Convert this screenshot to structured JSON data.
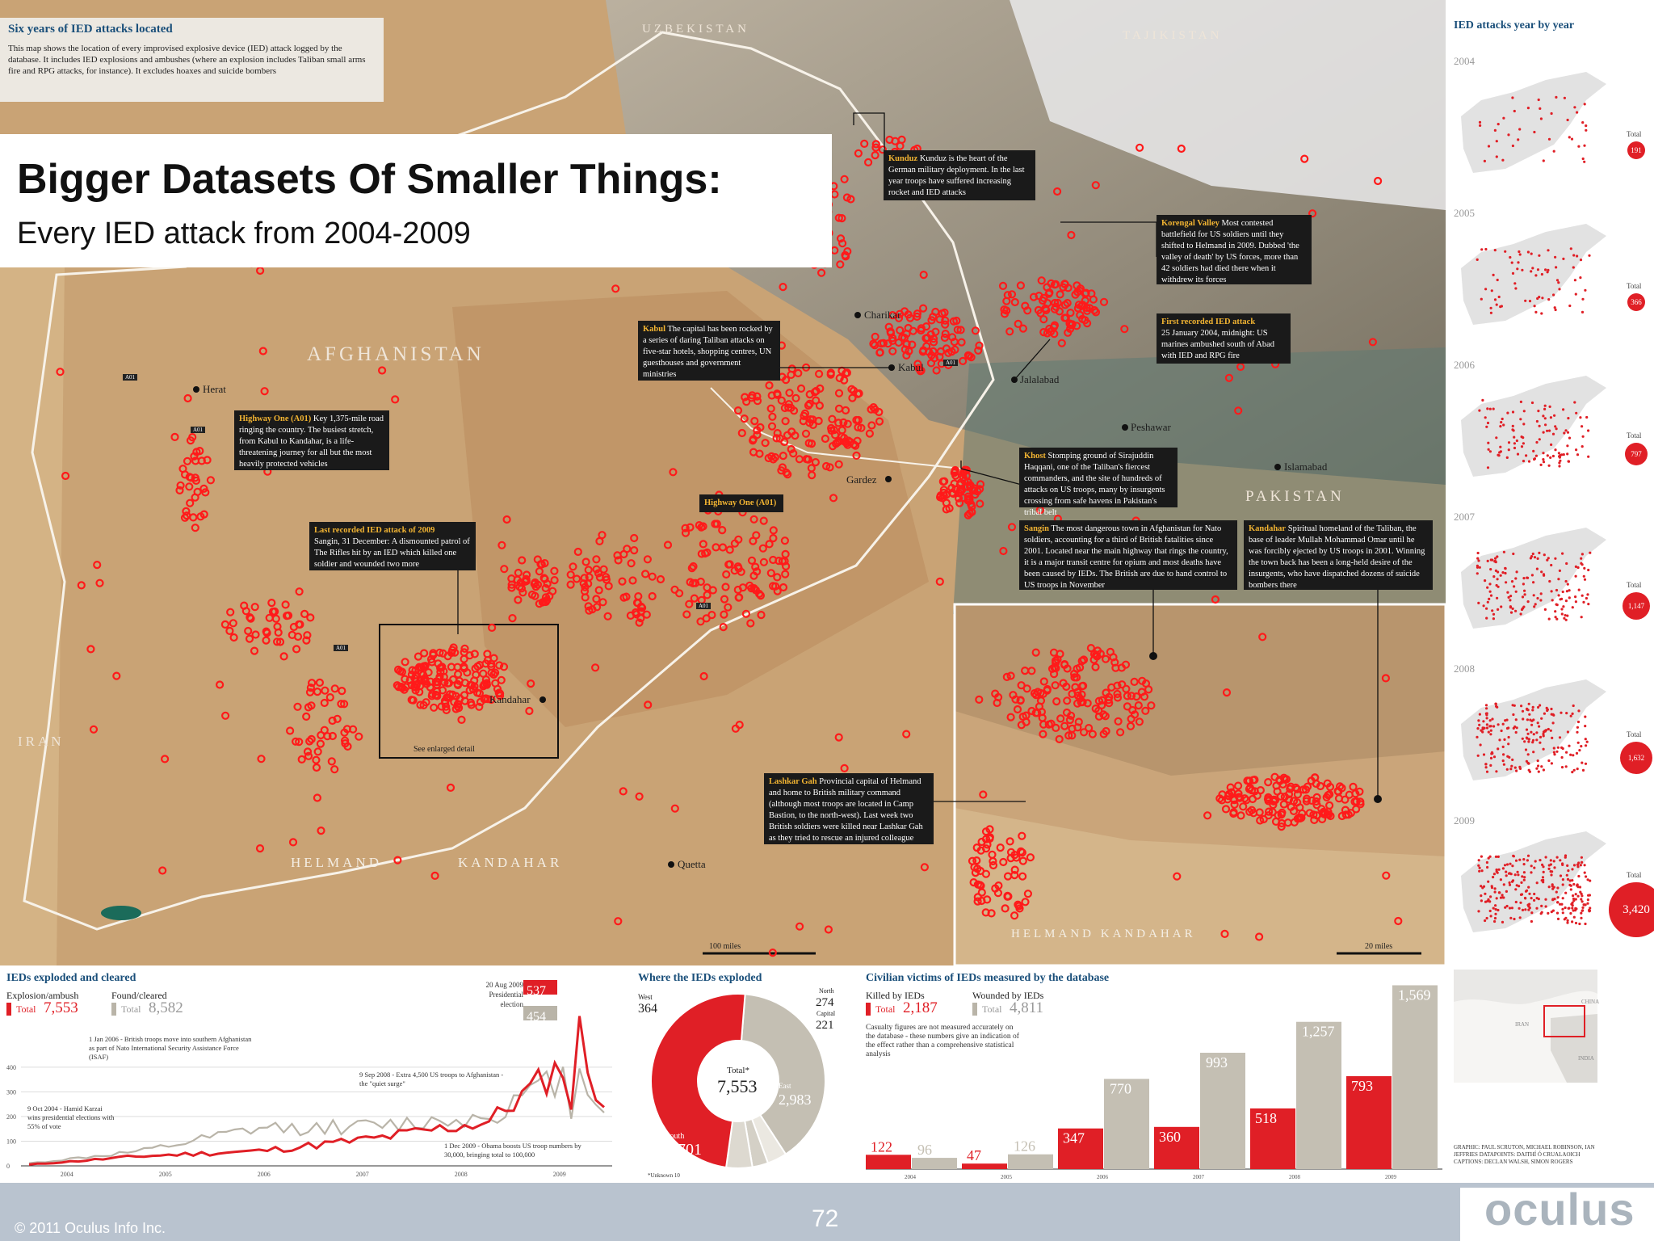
{
  "slide": {
    "title": "Bigger Datasets Of Smaller Things:",
    "subtitle": "Every IED attack from 2004-2009",
    "copyright": "© 2011 Oculus Info Inc.",
    "page_number": "72",
    "logo_text": "oculus"
  },
  "map": {
    "intro_title": "Six years of IED attacks located",
    "intro_text": "This map shows the location of every improvised explosive device (IED) attack logged by the database. It includes IED explosions and ambushes (where an explosion includes Taliban small arms fire and RPG attacks, for instance). It excludes hoaxes and suicide bombers",
    "countries": [
      "UZBEKISTAN",
      "TAJIKISTAN",
      "AFGHANISTAN",
      "PAKISTAN",
      "IRAN"
    ],
    "regions": [
      "HELMAND",
      "KANDAHAR"
    ],
    "places": [
      "Herat",
      "Kabul",
      "Jalalabad",
      "Peshawar",
      "Islamabad",
      "Gardez",
      "Kandahar",
      "Quetta",
      "Charikar"
    ],
    "road_labels": [
      "A01",
      "A01",
      "A01",
      "A01",
      "A01"
    ],
    "enlarged_label": "See enlarged detail",
    "scale_main": "100 miles",
    "scale_inset": "20 miles",
    "inset_regions": "HELMAND KANDAHAR",
    "callouts": {
      "kunduz": {
        "head": "Kunduz",
        "text": "Kunduz is the heart of the German military deployment. In the last year troops have suffered increasing rocket and IED attacks"
      },
      "korengal": {
        "head": "Korengal Valley",
        "text": "Most contested battlefield for US soldiers until they shifted to Helmand in 2009. Dubbed 'the valley of death' by US forces, more than 42 soldiers had died there when it withdrew its forces"
      },
      "first": {
        "head": "First recorded IED attack",
        "text": "25 January 2004, midnight: US marines ambushed south of Abad with IED and RPG fire"
      },
      "kabul": {
        "head": "Kabul",
        "text": "The capital has been rocked by a series of daring Taliban attacks on five-star hotels, shopping centres, UN guesthouses and government ministries"
      },
      "highway": {
        "head": "Highway One (A01)",
        "text": "Key 1,375-mile road ringing the country. The busiest stretch, from Kabul to Kandahar, is a life-threatening journey for all but the most heavily protected vehicles"
      },
      "highway_label": {
        "head": "Highway One (A01)",
        "text": ""
      },
      "khost": {
        "head": "Khost",
        "text": "Stomping ground of Sirajuddin Haqqani, one of the Taliban's fiercest commanders, and the site of hundreds of attacks on US troops, many by insurgents crossing from safe havens in Pakistan's tribal belt"
      },
      "last": {
        "head": "Last recorded IED attack of 2009",
        "text": "Sangin, 31 December: A dismounted patrol of The Rifles hit by an IED which killed one soldier and wounded two more"
      },
      "sangin": {
        "head": "Sangin",
        "text": "The most dangerous town in Afghanistan for Nato soldiers, accounting for a third of British fatalities since 2001. Located near the main highway that rings the country, it is a major transit centre for opium and most deaths have been caused by IEDs. The British are due to hand control to US troops in November"
      },
      "kandahar": {
        "head": "Kandahar",
        "text": "Spiritual homeland of the Taliban, the base of leader Mullah Mohammad Omar until he was forcibly ejected by US troops in 2001. Winning the town back has been a long-held desire of the insurgents, who have dispatched dozens of suicide bombers there"
      },
      "lashkar": {
        "head": "Lashkar Gah",
        "text": "Provincial capital of Helmand and home to British military command (although most troops are located in Camp Bastion, to the north-west). Last week two British soldiers were killed near Lashkar Gah as they tried to rescue an injured colleague"
      }
    }
  },
  "year_panel": {
    "title": "IED attacks year by year",
    "total_label": "Total",
    "years": [
      {
        "year": "2004",
        "total": "191"
      },
      {
        "year": "2005",
        "total": "366"
      },
      {
        "year": "2006",
        "total": "797"
      },
      {
        "year": "2007",
        "total": "1,147"
      },
      {
        "year": "2008",
        "total": "1,632"
      },
      {
        "year": "2009",
        "total": "3,420"
      }
    ]
  },
  "exploded_panel": {
    "title": "IEDs exploded and cleared",
    "legend_exploded": "Explosion/ambush",
    "legend_cleared": "Found/cleared",
    "total_exploded_label": "Total",
    "total_exploded": "7,553",
    "total_cleared_label": "Total",
    "total_cleared": "8,582",
    "y_ticks": [
      "400",
      "300",
      "200",
      "100",
      "0"
    ],
    "x_ticks": [
      "2004",
      "2005",
      "2006",
      "2007",
      "2008",
      "2009"
    ],
    "peak_exploded": "537",
    "peak_cleared": "454",
    "annotations": {
      "a1": "20 Aug 2009 Presidential election",
      "a2": "1 Jan 2006 - British troops move into southern Afghanistan as part of Nato International Security Assistance Force (ISAF)",
      "a3": "9 Sep 2008 - Extra 4,500 US troops to Afghanistan - the \"quiet surge\"",
      "a4": "9 Oct 2004 - Hamid Karzai wins presidential elections with 55% of vote",
      "a5": "1 Dec 2009 - Obama boosts US troop numbers by 30,000, bringing total to 100,000"
    }
  },
  "donut_panel": {
    "title": "Where the IEDs exploded",
    "center_label": "Total*",
    "center_value": "7,553",
    "footnote": "*Unknown 10",
    "segments": [
      {
        "name": "South",
        "value": "3,701",
        "color": "#e01f26"
      },
      {
        "name": "East",
        "value": "2,983",
        "color": "#c4bfb3"
      },
      {
        "name": "West",
        "value": "364",
        "color": "#ddd9d0"
      },
      {
        "name": "North",
        "value": "274",
        "color": "#ebe8e1"
      },
      {
        "name": "Capital",
        "value": "221",
        "color": "#d4d0c6"
      }
    ]
  },
  "victims_panel": {
    "title": "Civilian victims of IEDs measured by the database",
    "legend_killed": "Killed by IEDs",
    "legend_wounded": "Wounded by IEDs",
    "killed_total_label": "Total",
    "killed_total": "2,187",
    "wounded_total_label": "Total",
    "wounded_total": "4,811",
    "note": "Casualty figures are not measured accurately on the database - these numbers give an indication of the effect rather than a comprehensive statistical analysis",
    "bars": [
      {
        "year": "2004",
        "killed": "122",
        "wounded": "96"
      },
      {
        "year": "2005",
        "killed": "47",
        "wounded": "126"
      },
      {
        "year": "2006",
        "killed": "347",
        "wounded": "770"
      },
      {
        "year": "2007",
        "killed": "360",
        "wounded": "993"
      },
      {
        "year": "2008",
        "killed": "518",
        "wounded": "1,257"
      },
      {
        "year": "2009",
        "killed": "793",
        "wounded": "1,569"
      }
    ]
  },
  "locator_panel": {
    "labels": [
      "CHINA",
      "IRAN",
      "INDIA"
    ],
    "credits": "GRAPHIC: PAUL SCRUTON, MICHAEL ROBINSON, IAN JEFFRIES DATAPOINTS: DAITHÍ Ó CRUALAOICH CAPTIONS: DECLAN WALSH, SIMON ROGERS"
  },
  "chart_data": [
    {
      "type": "line",
      "title": "IEDs exploded and cleared",
      "x": [
        "2004",
        "2005",
        "2006",
        "2007",
        "2008",
        "2009"
      ],
      "ylim": [
        0,
        550
      ],
      "series": [
        {
          "name": "Explosion/ambush",
          "values": [
            5,
            40,
            60,
            110,
            180,
            537
          ]
        },
        {
          "name": "Found/cleared",
          "values": [
            10,
            60,
            150,
            160,
            200,
            454
          ]
        }
      ]
    },
    {
      "type": "pie",
      "title": "Where the IEDs exploded",
      "categories": [
        "South",
        "East",
        "West",
        "North",
        "Capital"
      ],
      "values": [
        3701,
        2983,
        364,
        274,
        221
      ]
    },
    {
      "type": "bar",
      "title": "Civilian victims of IEDs measured by the database",
      "categories": [
        "2004",
        "2005",
        "2006",
        "2007",
        "2008",
        "2009"
      ],
      "series": [
        {
          "name": "Killed by IEDs",
          "values": [
            122,
            47,
            347,
            360,
            518,
            793
          ]
        },
        {
          "name": "Wounded by IEDs",
          "values": [
            96,
            126,
            770,
            993,
            1257,
            1569
          ]
        }
      ],
      "ylim": [
        0,
        1600
      ]
    }
  ]
}
